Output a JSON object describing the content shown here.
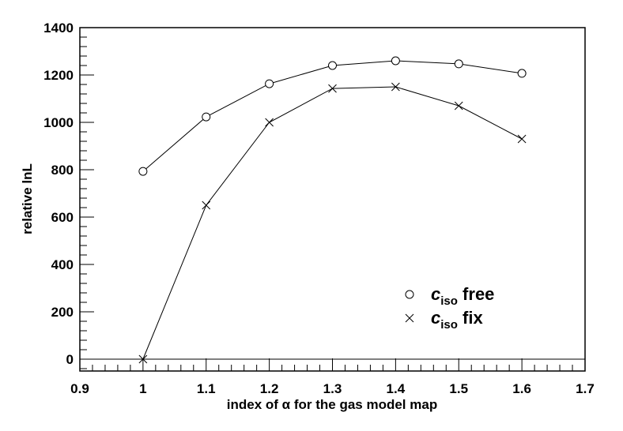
{
  "chart_data": {
    "type": "line",
    "title": "",
    "xlabel": "index of α for the gas model map",
    "ylabel": "relative lnL",
    "xlim": [
      0.9,
      1.7
    ],
    "ylim": [
      -50,
      1400
    ],
    "xticks": [
      "0.9",
      "1",
      "1.1",
      "1.2",
      "1.3",
      "1.4",
      "1.5",
      "1.6",
      "1.7"
    ],
    "yticks": [
      "0",
      "200",
      "400",
      "600",
      "800",
      "1000",
      "1200",
      "1400"
    ],
    "x": [
      1.0,
      1.1,
      1.2,
      1.3,
      1.4,
      1.5,
      1.6
    ],
    "series": [
      {
        "name": "c_iso free",
        "legend_main": "c",
        "legend_sub": "iso",
        "legend_rest": " free",
        "marker": "circle",
        "values": [
          793,
          1023,
          1163,
          1240,
          1260,
          1247,
          1207
        ]
      },
      {
        "name": "c_iso fix",
        "legend_main": "c",
        "legend_sub": "iso",
        "legend_rest": " fix",
        "marker": "x",
        "values": [
          0,
          650,
          1000,
          1143,
          1150,
          1070,
          930
        ]
      }
    ],
    "grid": false,
    "legend_position": "bottom-right",
    "zero_line": true
  }
}
